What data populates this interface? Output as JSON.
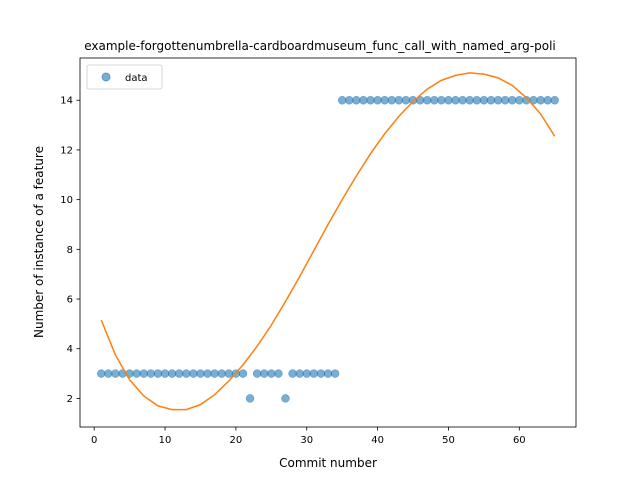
{
  "chart_data": {
    "type": "scatter",
    "title": "example-forgottenumbrella-cardboardmuseum_func_call_with_named_arg-poli",
    "xlabel": "Commit number",
    "ylabel": "Number of instance of a feature",
    "xlim": [
      -2,
      68
    ],
    "ylim": [
      0.85,
      15.7
    ],
    "xticks": [
      0,
      10,
      20,
      30,
      40,
      50,
      60
    ],
    "yticks": [
      2,
      4,
      6,
      8,
      10,
      12,
      14
    ],
    "grid": false,
    "legend": {
      "position": "upper-left",
      "entries": [
        "data"
      ]
    },
    "series": [
      {
        "name": "data",
        "kind": "scatter",
        "color": "#1f77b4",
        "x": [
          1,
          2,
          3,
          4,
          5,
          6,
          7,
          8,
          9,
          10,
          11,
          12,
          13,
          14,
          15,
          16,
          17,
          18,
          19,
          20,
          21,
          22,
          23,
          24,
          25,
          26,
          27,
          28,
          29,
          30,
          31,
          32,
          33,
          34,
          35,
          36,
          37,
          38,
          39,
          40,
          41,
          42,
          43,
          44,
          45,
          46,
          47,
          48,
          49,
          50,
          51,
          52,
          53,
          54,
          55,
          56,
          57,
          58,
          59,
          60,
          61,
          62,
          63,
          64,
          65
        ],
        "y": [
          3,
          3,
          3,
          3,
          3,
          3,
          3,
          3,
          3,
          3,
          3,
          3,
          3,
          3,
          3,
          3,
          3,
          3,
          3,
          3,
          3,
          2,
          3,
          3,
          3,
          3,
          2,
          3,
          3,
          3,
          3,
          3,
          3,
          3,
          14,
          14,
          14,
          14,
          14,
          14,
          14,
          14,
          14,
          14,
          14,
          14,
          14,
          14,
          14,
          14,
          14,
          14,
          14,
          14,
          14,
          14,
          14,
          14,
          14,
          14,
          14,
          14,
          14,
          14,
          14
        ]
      },
      {
        "kind": "line",
        "color": "#ff7f0e",
        "x": [
          1,
          3,
          5,
          7,
          9,
          11,
          13,
          15,
          17,
          19,
          21,
          23,
          25,
          27,
          29,
          31,
          33,
          35,
          37,
          39,
          41,
          43,
          45,
          47,
          49,
          51,
          53,
          55,
          57,
          59,
          61,
          63,
          65
        ],
        "y": [
          5.15,
          3.75,
          2.75,
          2.1,
          1.7,
          1.55,
          1.55,
          1.75,
          2.15,
          2.7,
          3.35,
          4.1,
          4.95,
          5.9,
          6.9,
          7.95,
          9.0,
          10.0,
          10.95,
          11.85,
          12.65,
          13.35,
          13.95,
          14.45,
          14.8,
          15.0,
          15.1,
          15.05,
          14.9,
          14.6,
          14.1,
          13.45,
          12.55
        ]
      }
    ]
  }
}
